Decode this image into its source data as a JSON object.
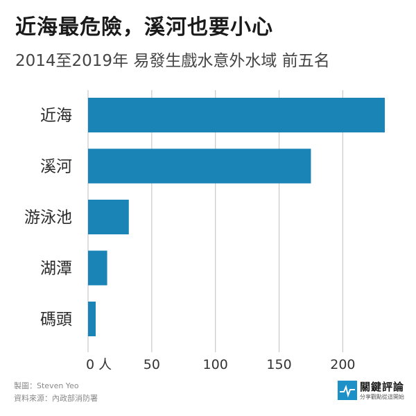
{
  "title": "近海最危險，溪河也要小心",
  "subtitle": "2014至2019年 易發生戲水意外水域 前五名",
  "colors": {
    "bar": "#1a84b6",
    "grid": "#c8c8c8",
    "axis_text": "#333333",
    "logo": "#1e90c8"
  },
  "chart_data": {
    "type": "bar",
    "orientation": "horizontal",
    "categories": [
      "近海",
      "溪河",
      "游泳池",
      "湖潭",
      "碼頭"
    ],
    "values": [
      233,
      175,
      32,
      15,
      6
    ],
    "unit_label": "人",
    "xlim": [
      0,
      233
    ],
    "xticks": [
      0,
      50,
      100,
      150,
      200
    ],
    "grid": "vertical"
  },
  "credits": {
    "made_by": "製圖：Steven Yeo",
    "source": "資料來源：內政部消防署"
  },
  "logo": {
    "name": "關鍵評論",
    "tagline": "分享觀點從這開始",
    "icon": "heartbeat-icon"
  }
}
